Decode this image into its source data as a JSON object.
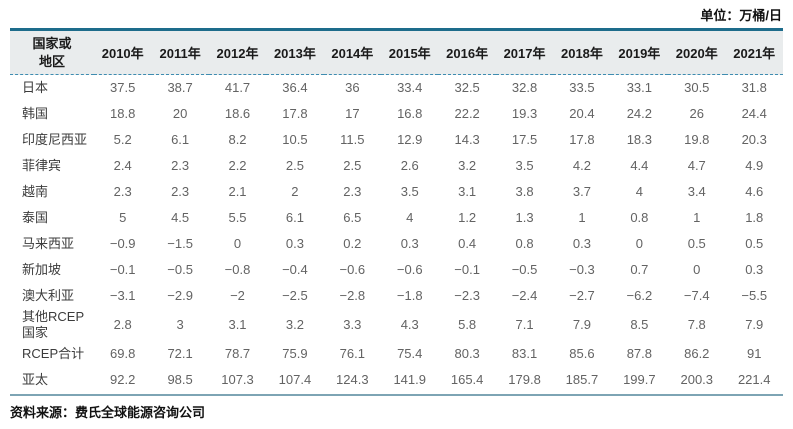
{
  "unit_label": "单位：万桶/日",
  "source_label": "资料来源：费氏全球能源咨询公司",
  "colors": {
    "top_border": "#1d6c8b",
    "header_bg": "#e9eced",
    "header_dashed_rule": "#3e8cb0",
    "bottom_border": "#7da4b4"
  },
  "table": {
    "corner_header": "国家或地区",
    "year_columns": [
      "2010年",
      "2011年",
      "2012年",
      "2013年",
      "2014年",
      "2015年",
      "2016年",
      "2017年",
      "2018年",
      "2019年",
      "2020年",
      "2021年"
    ],
    "rows": [
      {
        "label": "日本",
        "values": [
          "37.5",
          "38.7",
          "41.7",
          "36.4",
          "36",
          "33.4",
          "32.5",
          "32.8",
          "33.5",
          "33.1",
          "30.5",
          "31.8"
        ]
      },
      {
        "label": "韩国",
        "values": [
          "18.8",
          "20",
          "18.6",
          "17.8",
          "17",
          "16.8",
          "22.2",
          "19.3",
          "20.4",
          "24.2",
          "26",
          "24.4"
        ]
      },
      {
        "label": "印度尼西亚",
        "values": [
          "5.2",
          "6.1",
          "8.2",
          "10.5",
          "11.5",
          "12.9",
          "14.3",
          "17.5",
          "17.8",
          "18.3",
          "19.8",
          "20.3"
        ]
      },
      {
        "label": "菲律宾",
        "values": [
          "2.4",
          "2.3",
          "2.2",
          "2.5",
          "2.5",
          "2.6",
          "3.2",
          "3.5",
          "4.2",
          "4.4",
          "4.7",
          "4.9"
        ]
      },
      {
        "label": "越南",
        "values": [
          "2.3",
          "2.3",
          "2.1",
          "2",
          "2.3",
          "3.5",
          "3.1",
          "3.8",
          "3.7",
          "4",
          "3.4",
          "4.6"
        ]
      },
      {
        "label": "泰国",
        "values": [
          "5",
          "4.5",
          "5.5",
          "6.1",
          "6.5",
          "4",
          "1.2",
          "1.3",
          "1",
          "0.8",
          "1",
          "1.8"
        ]
      },
      {
        "label": "马来西亚",
        "values": [
          "−0.9",
          "−1.5",
          "0",
          "0.3",
          "0.2",
          "0.3",
          "0.4",
          "0.8",
          "0.3",
          "0",
          "0.5",
          "0.5"
        ]
      },
      {
        "label": "新加坡",
        "values": [
          "−0.1",
          "−0.5",
          "−0.8",
          "−0.4",
          "−0.6",
          "−0.6",
          "−0.1",
          "−0.5",
          "−0.3",
          "0.7",
          "0",
          "0.3"
        ]
      },
      {
        "label": "澳大利亚",
        "values": [
          "−3.1",
          "−2.9",
          "−2",
          "−2.5",
          "−2.8",
          "−1.8",
          "−2.3",
          "−2.4",
          "−2.7",
          "−6.2",
          "−7.4",
          "−5.5"
        ]
      },
      {
        "label": "其他RCEP国家",
        "values": [
          "2.8",
          "3",
          "3.1",
          "3.2",
          "3.3",
          "4.3",
          "5.8",
          "7.1",
          "7.9",
          "8.5",
          "7.8",
          "7.9"
        ]
      },
      {
        "label": "RCEP合计",
        "values": [
          "69.8",
          "72.1",
          "78.7",
          "75.9",
          "76.1",
          "75.4",
          "80.3",
          "83.1",
          "85.6",
          "87.8",
          "86.2",
          "91"
        ]
      },
      {
        "label": "亚太",
        "values": [
          "92.2",
          "98.5",
          "107.3",
          "107.4",
          "124.3",
          "141.9",
          "165.4",
          "179.8",
          "185.7",
          "199.7",
          "200.3",
          "221.4"
        ]
      }
    ]
  }
}
